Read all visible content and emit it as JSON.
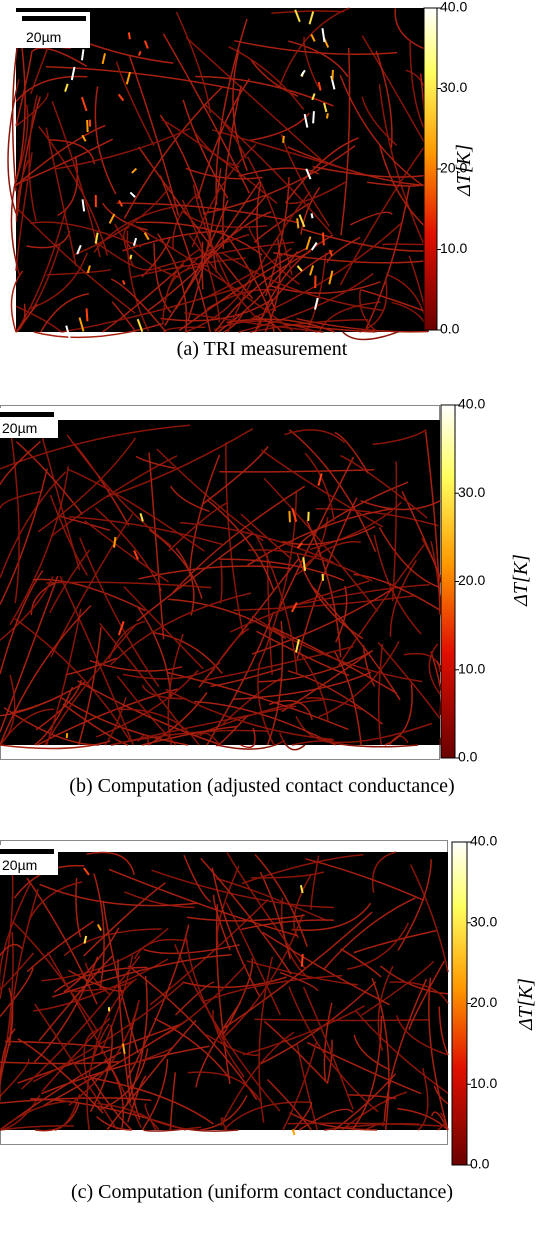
{
  "panels": [
    {
      "scale_bar": "20µm",
      "colorbar": {
        "label": "ΔT[K]",
        "ticks": [
          "40.0",
          "30.0",
          "20.0",
          "10.0",
          "0.0"
        ]
      },
      "caption": "(a) TRI measurement"
    },
    {
      "scale_bar": "20µm",
      "colorbar": {
        "label": "ΔT[K]",
        "ticks": [
          "40.0",
          "30.0",
          "20.0",
          "10.0",
          "0.0"
        ]
      },
      "caption": "(b) Computation (adjusted contact conductance)"
    },
    {
      "scale_bar": "20µm",
      "colorbar": {
        "label": "ΔT[K]",
        "ticks": [
          "40.0",
          "30.0",
          "20.0",
          "10.0",
          "0.0"
        ]
      },
      "caption": "(c) Computation (uniform contact conductance)"
    }
  ]
}
